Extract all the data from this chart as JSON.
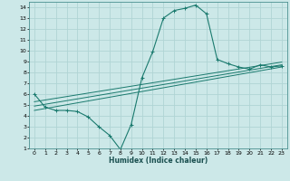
{
  "xlabel": "Humidex (Indice chaleur)",
  "bg_color": "#cce8e8",
  "grid_color": "#b0d4d4",
  "line_color": "#1a7a6e",
  "xlim": [
    -0.5,
    23.5
  ],
  "ylim": [
    1,
    14.5
  ],
  "xticks": [
    0,
    1,
    2,
    3,
    4,
    5,
    6,
    7,
    8,
    9,
    10,
    11,
    12,
    13,
    14,
    15,
    16,
    17,
    18,
    19,
    20,
    21,
    22,
    23
  ],
  "yticks": [
    1,
    2,
    3,
    4,
    5,
    6,
    7,
    8,
    9,
    10,
    11,
    12,
    13,
    14
  ],
  "curve1_x": [
    0,
    1,
    2,
    3,
    4,
    5,
    6,
    7,
    8,
    9,
    10,
    11,
    12,
    13,
    14,
    15,
    16,
    17,
    18,
    19,
    20,
    21,
    22,
    23
  ],
  "curve1_y": [
    6.0,
    4.8,
    4.5,
    4.5,
    4.4,
    3.9,
    3.0,
    2.2,
    0.9,
    3.2,
    7.5,
    9.9,
    13.0,
    13.7,
    13.9,
    14.2,
    13.4,
    9.2,
    8.8,
    8.5,
    8.3,
    8.7,
    8.5,
    8.6
  ],
  "line1_x": [
    0,
    23
  ],
  "line1_y": [
    4.5,
    8.5
  ],
  "line2_x": [
    0,
    23
  ],
  "line2_y": [
    4.9,
    8.7
  ],
  "line3_x": [
    0,
    23
  ],
  "line3_y": [
    5.3,
    8.95
  ]
}
